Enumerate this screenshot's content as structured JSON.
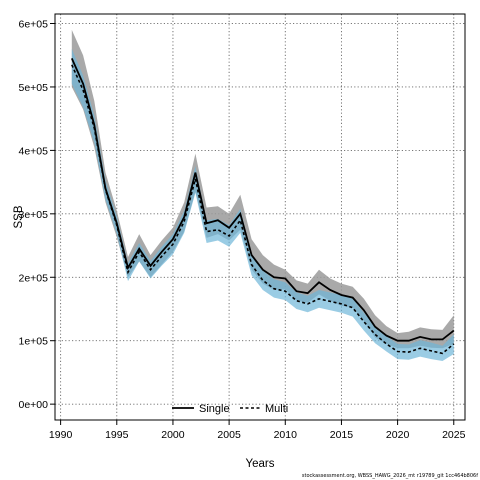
{
  "chart_data": {
    "type": "line",
    "xlabel": "Years",
    "ylabel": "SSB",
    "xlim": [
      1989.5,
      2026
    ],
    "ylim": [
      -25000,
      615000
    ],
    "grid": true,
    "legend_position": "bottom-center",
    "x_ticks": [
      1990,
      1995,
      2000,
      2005,
      2010,
      2015,
      2020,
      2025
    ],
    "x_tick_labels": [
      "1990",
      "1995",
      "2000",
      "2005",
      "2010",
      "2015",
      "2020",
      "2025"
    ],
    "y_ticks": [
      0,
      100000,
      200000,
      300000,
      400000,
      500000,
      600000
    ],
    "y_tick_labels": [
      "0e+00",
      "1e+05",
      "2e+05",
      "3e+05",
      "4e+05",
      "5e+05",
      "6e+05"
    ],
    "x": [
      1991,
      1992,
      1993,
      1994,
      1995,
      1996,
      1997,
      1998,
      1999,
      2000,
      2001,
      2002,
      2003,
      2004,
      2005,
      2006,
      2007,
      2008,
      2009,
      2010,
      2011,
      2012,
      2013,
      2014,
      2015,
      2016,
      2017,
      2018,
      2019,
      2020,
      2021,
      2022,
      2023,
      2024,
      2025
    ],
    "series": [
      {
        "name": "Single",
        "color": "#000000",
        "band_color": "#9a9a9a",
        "values": [
          545000,
          505000,
          440000,
          340000,
          285000,
          215000,
          245000,
          218000,
          240000,
          260000,
          295000,
          365000,
          285000,
          290000,
          278000,
          300000,
          235000,
          212000,
          200000,
          198000,
          178000,
          175000,
          192000,
          180000,
          172000,
          168000,
          148000,
          122000,
          108000,
          100000,
          100000,
          106000,
          102000,
          102000,
          116000
        ],
        "upper": [
          590000,
          550000,
          478000,
          365000,
          305000,
          232000,
          268000,
          235000,
          258000,
          278000,
          318000,
          395000,
          310000,
          312000,
          300000,
          330000,
          260000,
          235000,
          220000,
          212000,
          195000,
          190000,
          212000,
          198000,
          190000,
          185000,
          166000,
          140000,
          123000,
          112000,
          114000,
          121000,
          118000,
          117000,
          140000
        ],
        "lower": [
          500000,
          465000,
          405000,
          318000,
          263000,
          200000,
          225000,
          200000,
          220000,
          240000,
          272000,
          335000,
          262000,
          268000,
          258000,
          275000,
          212000,
          190000,
          180000,
          181000,
          163000,
          160000,
          173000,
          163000,
          155000,
          152000,
          131000,
          105000,
          95000,
          88000,
          88000,
          92000,
          89000,
          88000,
          95000
        ]
      },
      {
        "name": "Multi",
        "color": "#000000",
        "band_color": "#6fb7d9",
        "values": [
          535000,
          495000,
          435000,
          338000,
          282000,
          208000,
          240000,
          212000,
          233000,
          252000,
          288000,
          355000,
          272000,
          275000,
          265000,
          290000,
          220000,
          195000,
          182000,
          178000,
          163000,
          158000,
          166000,
          162000,
          158000,
          152000,
          130000,
          110000,
          95000,
          83000,
          82000,
          88000,
          84000,
          80000,
          95000
        ],
        "upper": [
          560000,
          518000,
          455000,
          352000,
          296000,
          222000,
          254000,
          226000,
          248000,
          268000,
          305000,
          375000,
          290000,
          292000,
          282000,
          308000,
          236000,
          210000,
          197000,
          192000,
          176000,
          171000,
          180000,
          176000,
          172000,
          166000,
          144000,
          123000,
          107000,
          95000,
          94000,
          101000,
          97000,
          92000,
          110000
        ],
        "lower": [
          505000,
          468000,
          412000,
          322000,
          268000,
          194000,
          225000,
          198000,
          218000,
          236000,
          270000,
          333000,
          254000,
          258000,
          248000,
          270000,
          203000,
          180000,
          168000,
          164000,
          150000,
          145000,
          152000,
          148000,
          144000,
          138000,
          116000,
          96000,
          83000,
          71000,
          70000,
          75000,
          71000,
          68000,
          79000
        ]
      }
    ]
  },
  "footnote": "stockassessment.org, WBSS_HAWG_2026_mt r19789_git 1cc464b806f"
}
